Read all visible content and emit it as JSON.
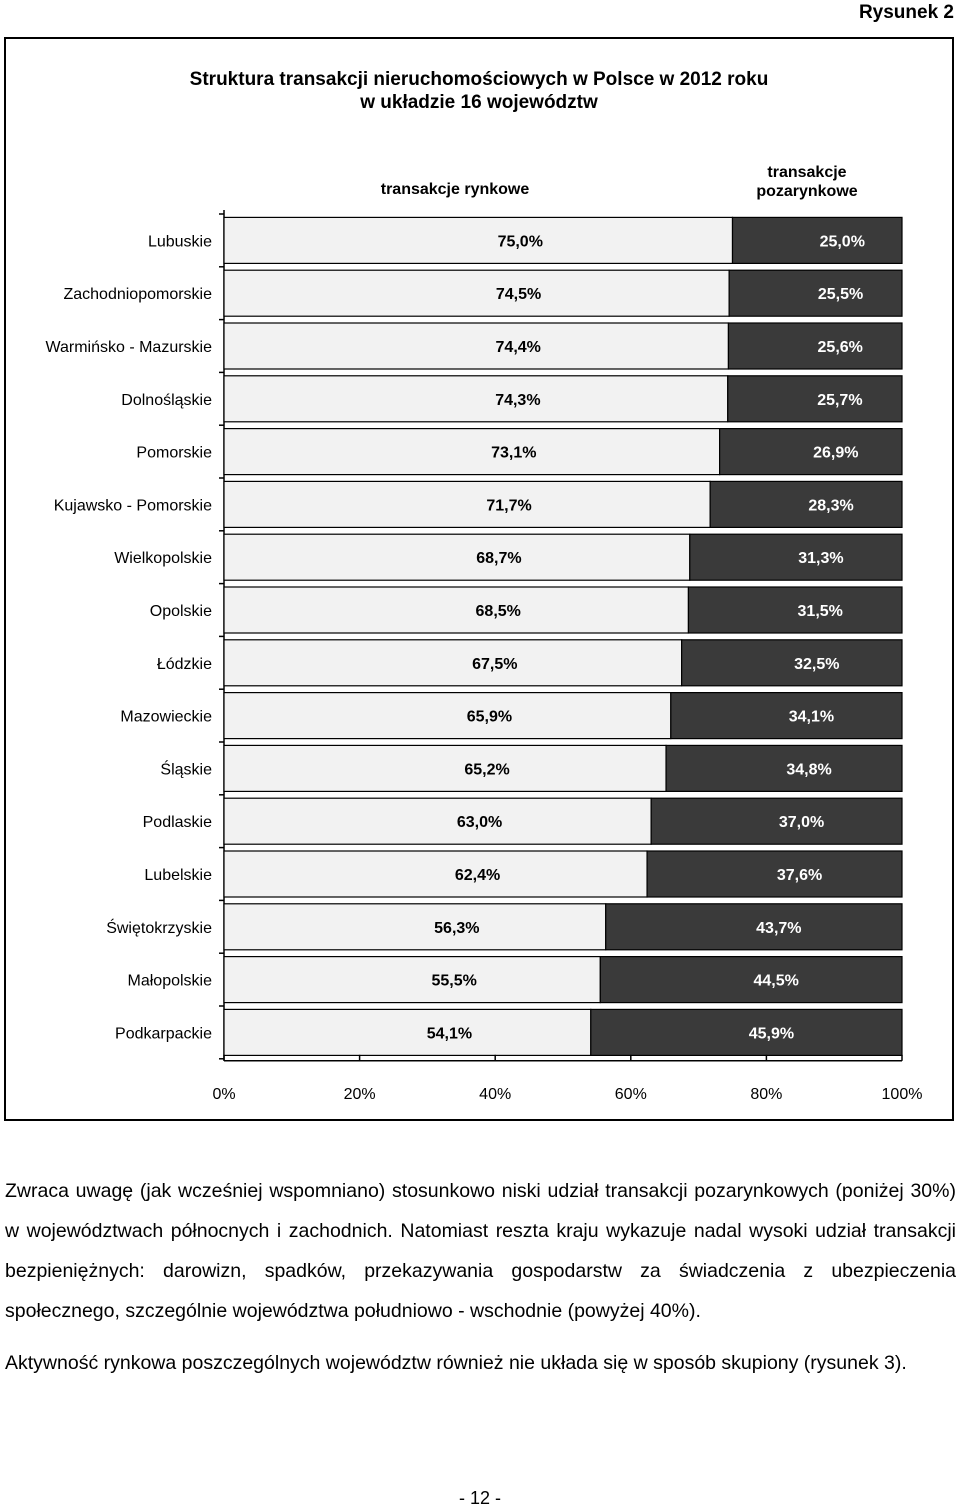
{
  "figure_label": "Rysunek 2",
  "chart_data": {
    "type": "bar",
    "orientation": "horizontal",
    "stacked": "percent",
    "title": "Struktura transakcji nieruchomościowych w Polsce w 2012 roku\nw układzie 16 województw",
    "categories": [
      "Lubuskie",
      "Zachodniopomorskie",
      "Warmińsko - Mazurskie",
      "Dolnośląskie",
      "Pomorskie",
      "Kujawsko - Pomorskie",
      "Wielkopolskie",
      "Opolskie",
      "Łódzkie",
      "Mazowieckie",
      "Śląskie",
      "Podlaskie",
      "Lubelskie",
      "Świętokrzyskie",
      "Małopolskie",
      "Podkarpackie"
    ],
    "series": [
      {
        "name": "transakcje rynkowe",
        "color": "#f2f2f2",
        "values": [
          75.0,
          74.5,
          74.4,
          74.3,
          73.1,
          71.7,
          68.7,
          68.5,
          67.5,
          65.9,
          65.2,
          63.0,
          62.4,
          56.3,
          55.5,
          54.1
        ],
        "labels": [
          "75,0%",
          "74,5%",
          "74,4%",
          "74,3%",
          "73,1%",
          "71,7%",
          "68,7%",
          "68,5%",
          "67,5%",
          "65,9%",
          "65,2%",
          "63,0%",
          "62,4%",
          "56,3%",
          "55,5%",
          "54,1%"
        ]
      },
      {
        "name": "transakcje pozarynkowe",
        "color": "#3a3a3a",
        "values": [
          25.0,
          25.5,
          25.6,
          25.7,
          26.9,
          28.3,
          31.3,
          31.5,
          32.5,
          34.1,
          34.8,
          37.0,
          37.6,
          43.7,
          44.5,
          45.9
        ],
        "labels": [
          "25,0%",
          "25,5%",
          "25,6%",
          "25,7%",
          "26,9%",
          "28,3%",
          "31,3%",
          "31,5%",
          "32,5%",
          "34,1%",
          "34,8%",
          "37,0%",
          "37,6%",
          "43,7%",
          "44,5%",
          "45,9%"
        ]
      }
    ],
    "xlim": [
      0,
      100
    ],
    "x_ticks": [
      "0%",
      "20%",
      "40%",
      "60%",
      "80%",
      "100%"
    ],
    "legend": "top"
  },
  "text": {
    "paragraph1": "Zwraca uwagę (jak wcześniej wspomniano) stosunkowo niski udział transakcji pozarynkowych (poniżej 30%) w województwach północnych i zachodnich. Natomiast reszta kraju wykazuje nadal wysoki udział transakcji bezpieniężnych: darowizn, spadków, przekazywania gospodarstw za świadczenia z ubezpieczenia społecznego, szczególnie województwa południowo - wschodnie (powyżej 40%).",
    "paragraph2": "Aktywność rynkowa poszczególnych województw również nie układa się w sposób skupiony (rysunek 3).",
    "page_number": "- 12 -"
  }
}
